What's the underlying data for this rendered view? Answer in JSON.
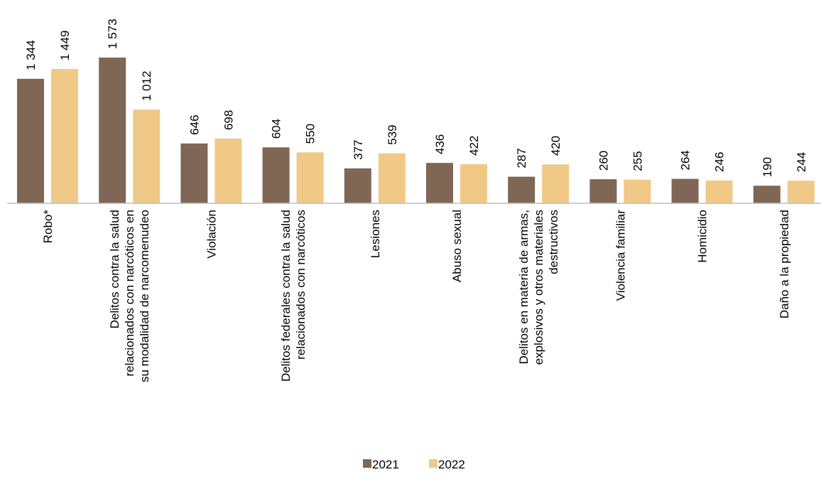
{
  "chart_data": {
    "type": "bar",
    "title": "",
    "xlabel": "",
    "ylabel": "",
    "ylim": [
      0,
      1573
    ],
    "grid": false,
    "legend_position": "bottom",
    "categories": [
      [
        "Robo*"
      ],
      [
        "Delitos contra la salud",
        "relacionados con narcóticos en",
        "su modalidad de narcomenudeo"
      ],
      [
        "Violación"
      ],
      [
        "Delitos federales contra la salud",
        "relacionados con narcóticos"
      ],
      [
        "Lesiones"
      ],
      [
        "Abuso sexual"
      ],
      [
        "Delitos en materia de armas,",
        "explosivos y otros materiales",
        "destructivos"
      ],
      [
        "Violencia familiar"
      ],
      [
        "Homicidio"
      ],
      [
        "Daño a la propiedad"
      ]
    ],
    "series": [
      {
        "name": "2021",
        "color": "#7f6655",
        "values": [
          1344,
          1573,
          646,
          604,
          377,
          436,
          287,
          260,
          264,
          190
        ],
        "labels": [
          "1 344",
          "1 573",
          "646",
          "604",
          "377",
          "436",
          "287",
          "260",
          "264",
          "190"
        ]
      },
      {
        "name": "2022",
        "color": "#f0c987",
        "values": [
          1449,
          1012,
          698,
          550,
          539,
          422,
          420,
          255,
          246,
          244
        ],
        "labels": [
          "1 449",
          "1 012",
          "698",
          "550",
          "539",
          "422",
          "420",
          "255",
          "246",
          "244"
        ]
      }
    ]
  }
}
